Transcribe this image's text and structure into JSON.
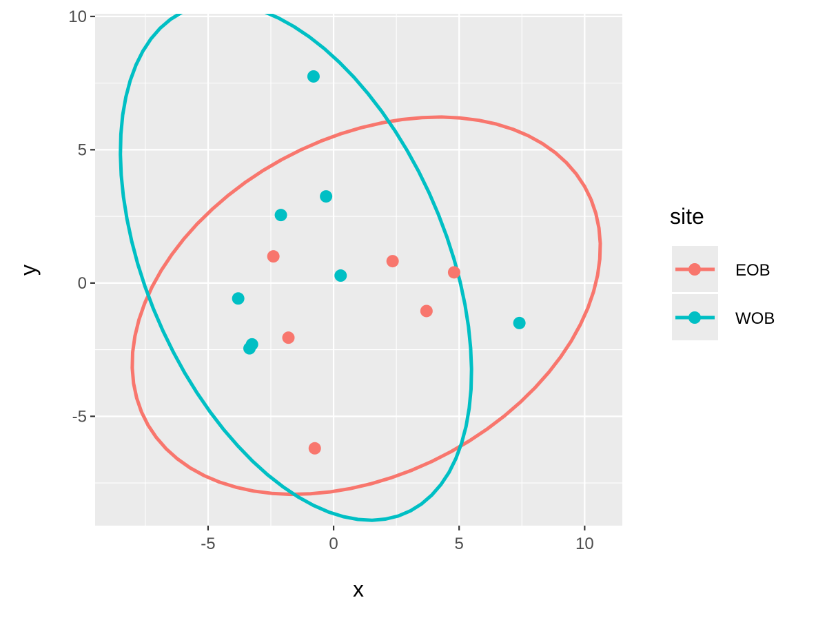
{
  "chart_data": {
    "type": "scatter",
    "title": "",
    "xlabel": "x",
    "ylabel": "y",
    "xlim": [
      -9.5,
      11.5
    ],
    "ylim": [
      -9.1,
      10.1
    ],
    "x_ticks": [
      -5,
      0,
      5,
      10
    ],
    "y_ticks": [
      -5,
      0,
      5,
      10
    ],
    "x_tick_labels": [
      "-5",
      "0",
      "5",
      "10"
    ],
    "y_tick_labels": [
      "-5",
      "0",
      "5",
      "10"
    ],
    "grid": true,
    "legend": {
      "title": "site",
      "position": "right"
    },
    "series": [
      {
        "name": "EOB",
        "color": "#F8766D",
        "points": [
          {
            "x": -2.4,
            "y": 1.0
          },
          {
            "x": -1.8,
            "y": -2.05
          },
          {
            "x": -0.75,
            "y": -6.2
          },
          {
            "x": 2.35,
            "y": 0.82
          },
          {
            "x": 3.7,
            "y": -1.05
          },
          {
            "x": 4.8,
            "y": 0.4
          }
        ],
        "ellipse": {
          "cx": 1.3,
          "cy": -0.85,
          "a": 9.8,
          "b": 6.4,
          "angle_deg": 24
        }
      },
      {
        "name": "WOB",
        "color": "#00BFC4",
        "points": [
          {
            "x": -0.8,
            "y": 7.75
          },
          {
            "x": -0.3,
            "y": 3.25
          },
          {
            "x": -2.1,
            "y": 2.55
          },
          {
            "x": 0.28,
            "y": 0.28
          },
          {
            "x": -3.8,
            "y": -0.58
          },
          {
            "x": -3.25,
            "y": -2.3
          },
          {
            "x": -3.35,
            "y": -2.45
          },
          {
            "x": 7.4,
            "y": -1.5
          }
        ],
        "ellipse": {
          "cx": -1.5,
          "cy": 0.8,
          "a": 10.4,
          "b": 5.9,
          "angle_deg": 116
        }
      }
    ]
  }
}
